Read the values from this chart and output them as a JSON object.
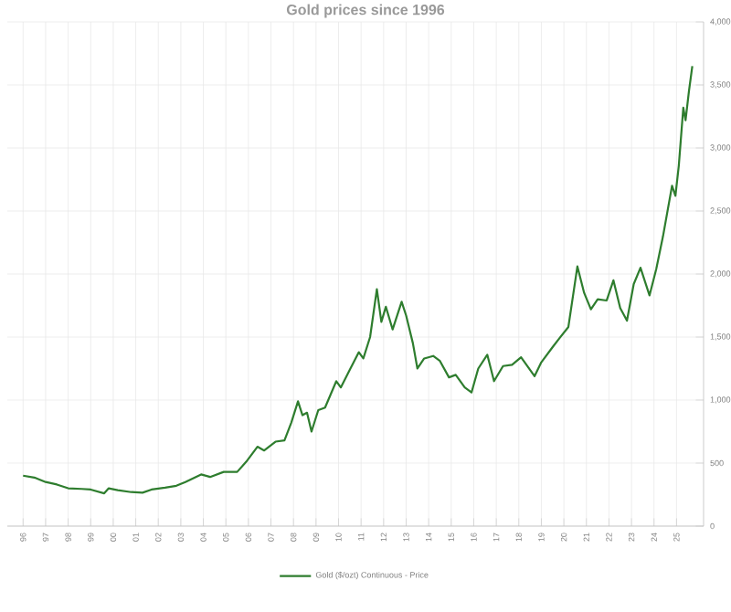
{
  "chart_data": {
    "type": "line",
    "title": "Gold prices since 1996",
    "x": [
      1996.0,
      1996.5,
      1997.0,
      1997.5,
      1998.0,
      1998.6,
      1999.0,
      1999.6,
      1999.8,
      2000.2,
      2000.8,
      2001.3,
      2001.7,
      2002.3,
      2002.8,
      2003.2,
      2003.9,
      2004.3,
      2004.9,
      2005.5,
      2005.9,
      2006.4,
      2006.7,
      2007.2,
      2007.6,
      2007.9,
      2008.2,
      2008.4,
      2008.6,
      2008.8,
      2009.1,
      2009.4,
      2009.9,
      2010.1,
      2010.5,
      2010.9,
      2011.1,
      2011.4,
      2011.7,
      2011.9,
      2012.1,
      2012.4,
      2012.8,
      2013.0,
      2013.3,
      2013.5,
      2013.8,
      2014.2,
      2014.5,
      2014.9,
      2015.2,
      2015.6,
      2015.9,
      2016.2,
      2016.6,
      2016.9,
      2017.3,
      2017.7,
      2018.1,
      2018.7,
      2019.0,
      2019.5,
      2019.8,
      2020.2,
      2020.6,
      2020.9,
      2021.2,
      2021.5,
      2021.9,
      2022.2,
      2022.5,
      2022.8,
      2023.1,
      2023.4,
      2023.8,
      2024.1,
      2024.4,
      2024.8,
      2024.95,
      2025.1,
      2025.3,
      2025.4,
      2025.55,
      2025.7
    ],
    "series": [
      {
        "name": "Gold ($/ozt) Continuous - Price",
        "color": "#2e7d2e",
        "values": [
          400,
          385,
          350,
          330,
          300,
          295,
          290,
          260,
          300,
          285,
          270,
          265,
          290,
          305,
          320,
          350,
          410,
          390,
          430,
          430,
          510,
          630,
          600,
          670,
          680,
          820,
          990,
          880,
          900,
          750,
          920,
          940,
          1150,
          1100,
          1240,
          1380,
          1330,
          1500,
          1880,
          1620,
          1740,
          1560,
          1780,
          1670,
          1450,
          1250,
          1330,
          1350,
          1310,
          1180,
          1200,
          1100,
          1060,
          1250,
          1360,
          1150,
          1270,
          1280,
          1340,
          1190,
          1300,
          1420,
          1490,
          1580,
          2060,
          1850,
          1720,
          1800,
          1790,
          1950,
          1730,
          1630,
          1920,
          2050,
          1830,
          2040,
          2300,
          2700,
          2620,
          2860,
          3320,
          3220,
          3450,
          3650
        ]
      }
    ],
    "xlim": [
      1995.3,
      2026.2
    ],
    "ylim": [
      0,
      4000
    ],
    "xticks": [
      {
        "value": 1996,
        "label": "96"
      },
      {
        "value": 1997,
        "label": "97"
      },
      {
        "value": 1998,
        "label": "98"
      },
      {
        "value": 1999,
        "label": "99"
      },
      {
        "value": 2000,
        "label": "00"
      },
      {
        "value": 2001,
        "label": "01"
      },
      {
        "value": 2002,
        "label": "02"
      },
      {
        "value": 2003,
        "label": "03"
      },
      {
        "value": 2004,
        "label": "04"
      },
      {
        "value": 2005,
        "label": "05"
      },
      {
        "value": 2006,
        "label": "06"
      },
      {
        "value": 2007,
        "label": "07"
      },
      {
        "value": 2008,
        "label": "08"
      },
      {
        "value": 2009,
        "label": "09"
      },
      {
        "value": 2010,
        "label": "10"
      },
      {
        "value": 2011,
        "label": "11"
      },
      {
        "value": 2012,
        "label": "12"
      },
      {
        "value": 2013,
        "label": "13"
      },
      {
        "value": 2014,
        "label": "14"
      },
      {
        "value": 2015,
        "label": "15"
      },
      {
        "value": 2016,
        "label": "16"
      },
      {
        "value": 2017,
        "label": "17"
      },
      {
        "value": 2018,
        "label": "18"
      },
      {
        "value": 2019,
        "label": "19"
      },
      {
        "value": 2020,
        "label": "20"
      },
      {
        "value": 2021,
        "label": "21"
      },
      {
        "value": 2022,
        "label": "22"
      },
      {
        "value": 2023,
        "label": "23"
      },
      {
        "value": 2024,
        "label": "24"
      },
      {
        "value": 2025,
        "label": "25"
      }
    ],
    "yticks": [
      0,
      500,
      {
        "value": 1000,
        "label": "1,000"
      },
      {
        "value": 1500,
        "label": "1,500"
      },
      {
        "value": 2000,
        "label": "2,000"
      },
      {
        "value": 2500,
        "label": "2,500"
      },
      {
        "value": 3000,
        "label": "3,000"
      },
      {
        "value": 3500,
        "label": "3,500"
      },
      {
        "value": 4000,
        "label": "4,000"
      }
    ],
    "grid": true,
    "legend": "bottom",
    "marker": "none",
    "line_style": "solid"
  }
}
